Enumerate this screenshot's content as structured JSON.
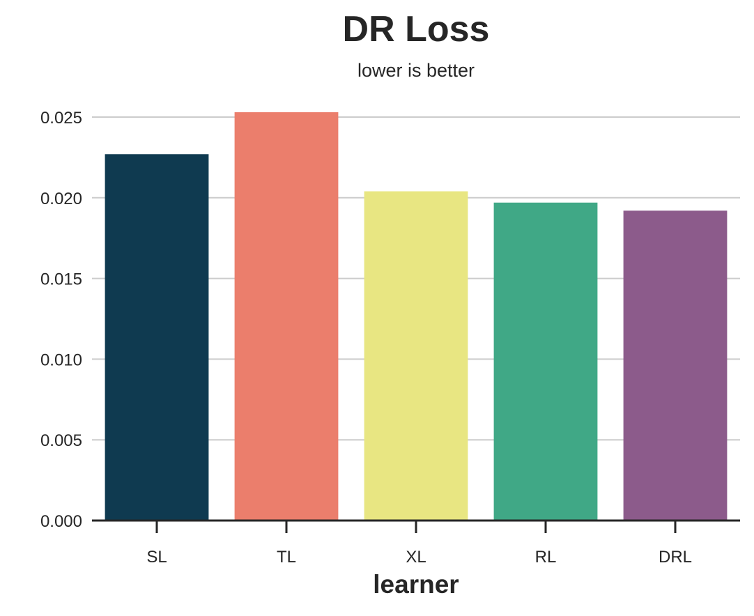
{
  "chart_data": {
    "type": "bar",
    "title": "DR Loss",
    "subtitle": "lower is better",
    "xlabel": "learner",
    "ylabel": "",
    "categories": [
      "SL",
      "TL",
      "XL",
      "RL",
      "DRL"
    ],
    "values": [
      0.0227,
      0.0253,
      0.0204,
      0.0197,
      0.0192
    ],
    "colors": [
      "#0f3a50",
      "#eb7e6c",
      "#e8e682",
      "#40a886",
      "#8c5b8b"
    ],
    "ylim": [
      0,
      0.0272
    ],
    "yticks": [
      "0.000",
      "0.005",
      "0.010",
      "0.015",
      "0.020",
      "0.025"
    ],
    "grid": "horizontal"
  }
}
